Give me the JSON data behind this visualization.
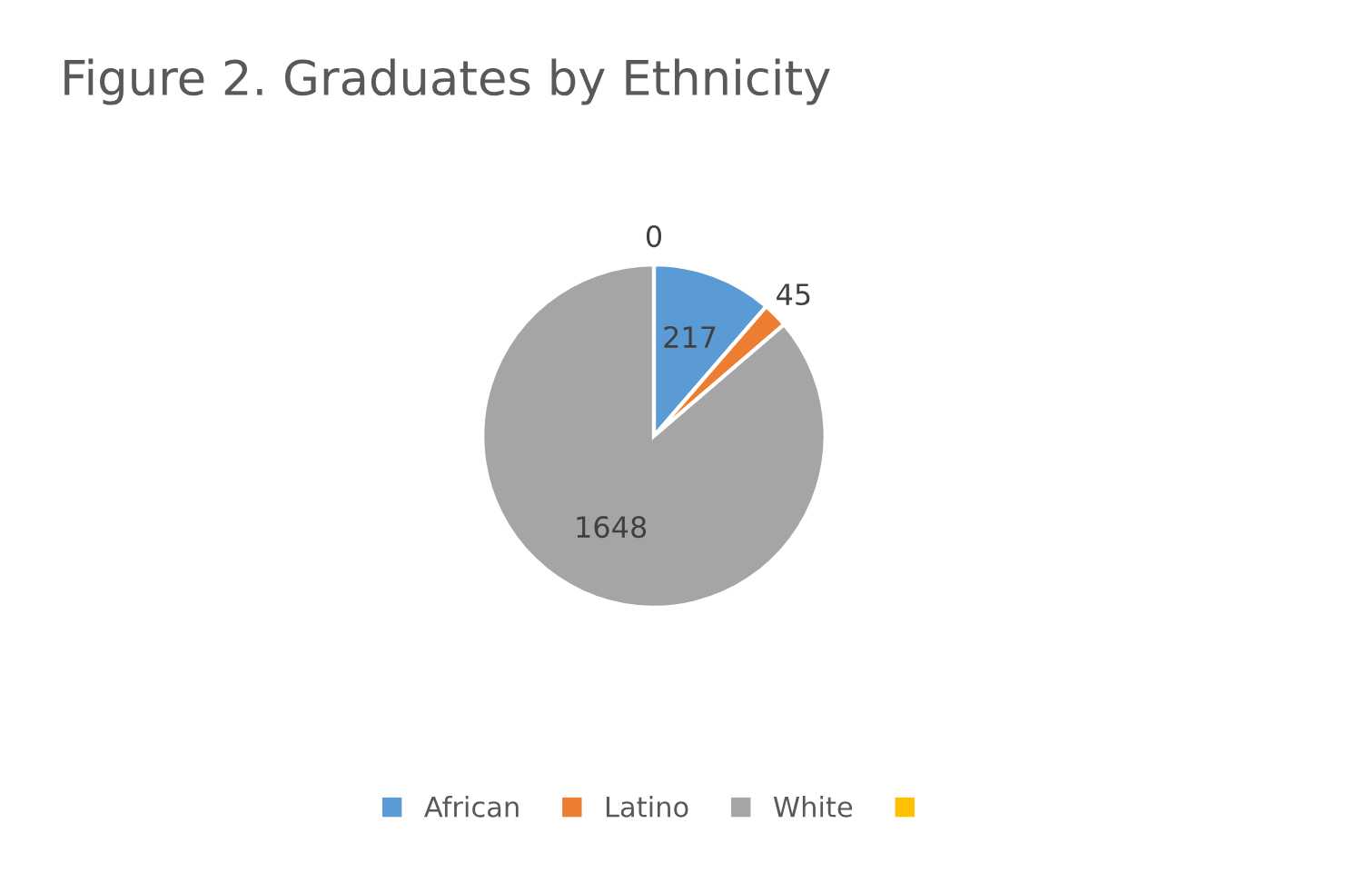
{
  "chart_data": {
    "type": "pie",
    "title": "Figure 2. Graduates by Ethnicity",
    "categories": [
      "African",
      "Latino",
      "White",
      null
    ],
    "values": [
      217,
      45,
      1648,
      0
    ],
    "colors": [
      "#5b9bd5",
      "#ed7d31",
      "#a5a5a5",
      "#ffc000"
    ],
    "value_labels": [
      "217",
      "45",
      "1648",
      "0"
    ],
    "legend": "bottom"
  }
}
